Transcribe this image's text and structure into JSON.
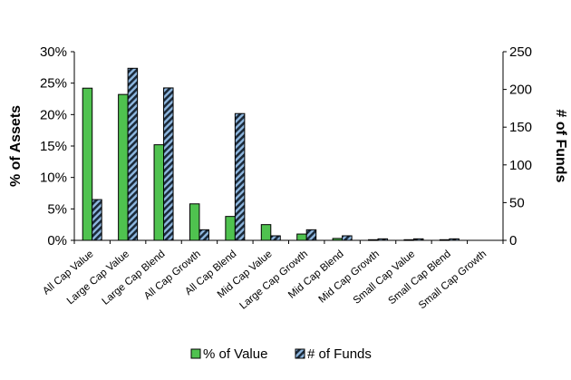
{
  "chart_data": {
    "type": "bar",
    "categories": [
      "All Cap Value",
      "Large Cap Value",
      "Large Cap Blend",
      "All Cap Growth",
      "All Cap Blend",
      "Mid Cap Value",
      "Large Cap Growth",
      "Mid Cap Blend",
      "Mid Cap Growth",
      "Small Cap Value",
      "Small Cap Blend",
      "Small Cap Growth"
    ],
    "series": [
      {
        "name": "% of Value",
        "axis": "left",
        "color": "#4fc24f",
        "values": [
          24.2,
          23.2,
          15.2,
          5.8,
          3.8,
          2.5,
          1.0,
          0.3,
          0.1,
          0.1,
          0.1,
          0.0
        ]
      },
      {
        "name": "# of Funds",
        "axis": "right",
        "color": "#8fb8e0",
        "pattern": "diagonal-hatch-dark",
        "values": [
          54,
          228,
          202,
          14,
          168,
          6,
          14,
          6,
          2,
          2,
          2,
          0
        ]
      }
    ],
    "ylabel": "% of Assets",
    "y2label": "# of Funds",
    "ylim": [
      0,
      30
    ],
    "y2lim": [
      0,
      250
    ],
    "yticks": [
      "0%",
      "5%",
      "10%",
      "15%",
      "20%",
      "25%",
      "30%"
    ],
    "y2ticks": [
      "0",
      "50",
      "100",
      "150",
      "200",
      "250"
    ],
    "legend_position": "bottom",
    "grid": false
  }
}
